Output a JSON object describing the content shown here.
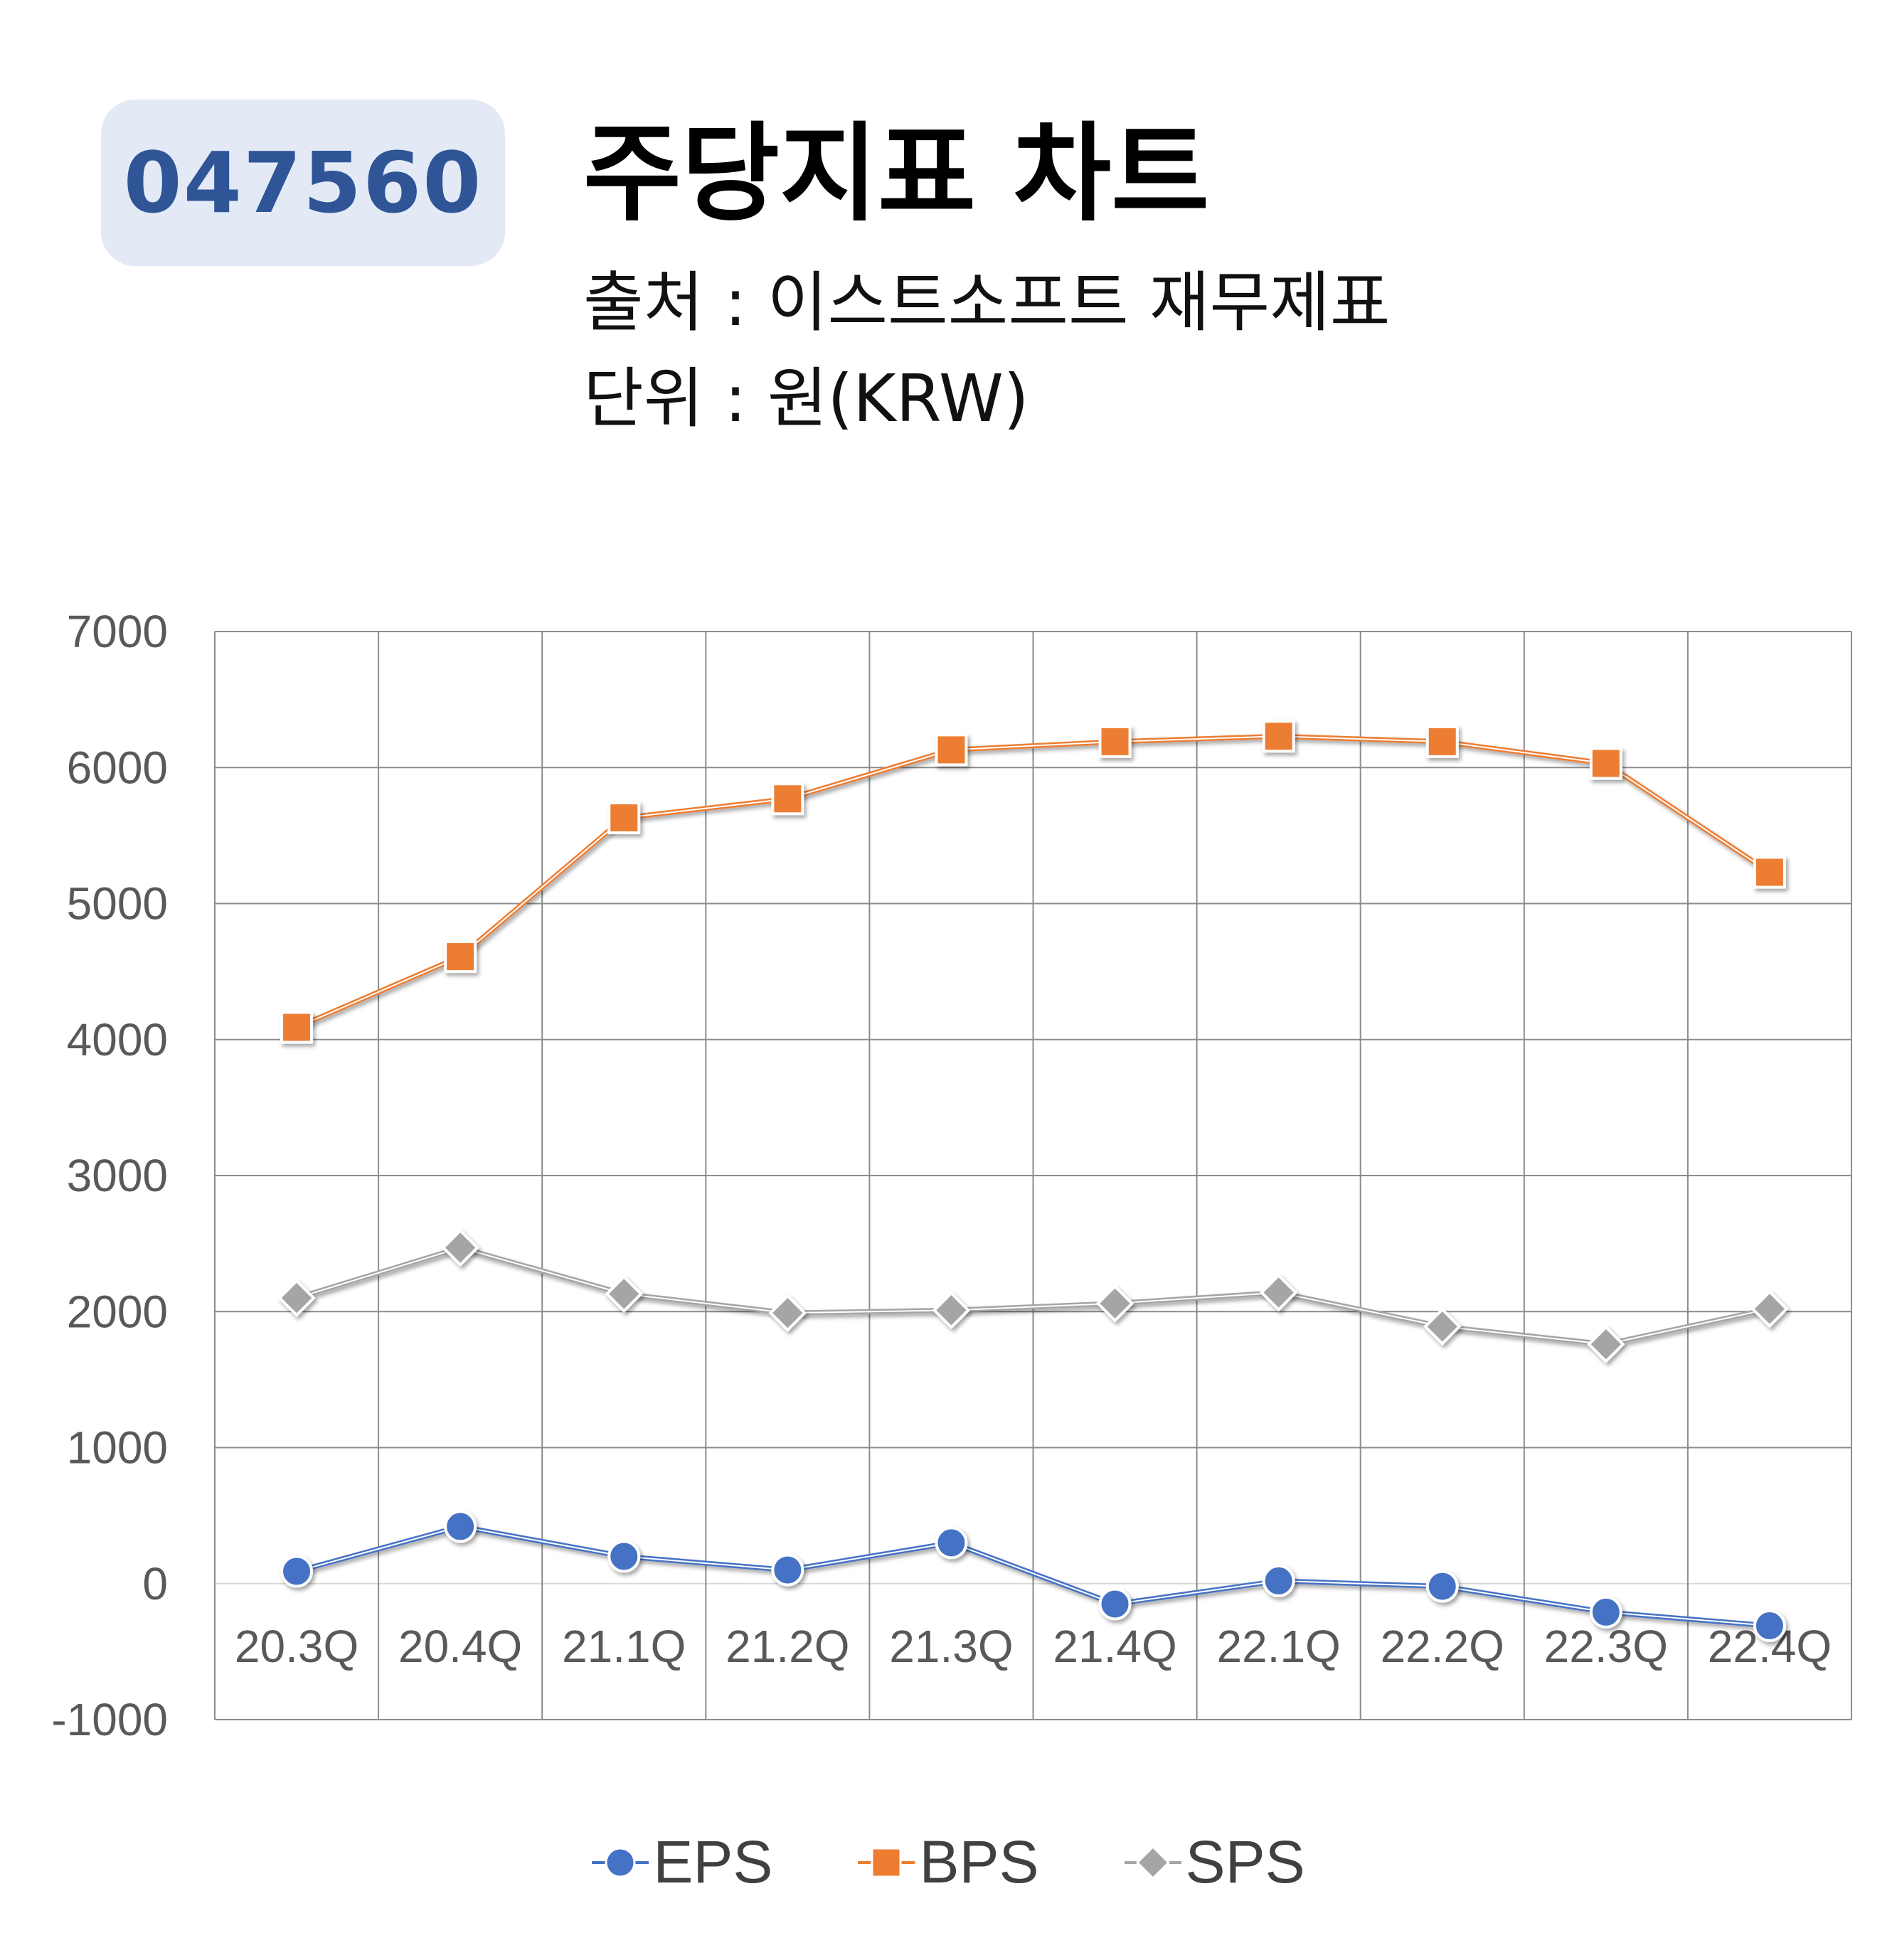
{
  "header": {
    "code": "047560",
    "title": "주당지표 차트",
    "source": "출처 : 이스트소프트 재무제표",
    "unit": "단위 : 원(KRW)"
  },
  "chart_data": {
    "type": "line",
    "categories": [
      "20.3Q",
      "20.4Q",
      "21.1Q",
      "21.2Q",
      "21.3Q",
      "21.4Q",
      "22.1Q",
      "22.2Q",
      "22.3Q",
      "22.4Q"
    ],
    "ylim": [
      -1000,
      7000
    ],
    "yticks": [
      7000,
      6000,
      5000,
      4000,
      3000,
      2000,
      1000,
      0,
      -1000
    ],
    "grid": true,
    "legend_position": "bottom",
    "series": [
      {
        "name": "EPS",
        "color": "#4472c4",
        "marker": "circle",
        "values": [
          90,
          420,
          200,
          100,
          300,
          -150,
          20,
          -20,
          -210,
          -310
        ]
      },
      {
        "name": "BPS",
        "color": "#ed7d31",
        "marker": "square",
        "values": [
          4090,
          4610,
          5630,
          5770,
          6130,
          6190,
          6230,
          6190,
          6030,
          5230
        ]
      },
      {
        "name": "SPS",
        "color": "#a5a5a5",
        "marker": "diamond",
        "values": [
          2100,
          2470,
          2130,
          1990,
          2010,
          2060,
          2140,
          1890,
          1760,
          2020
        ]
      }
    ]
  }
}
